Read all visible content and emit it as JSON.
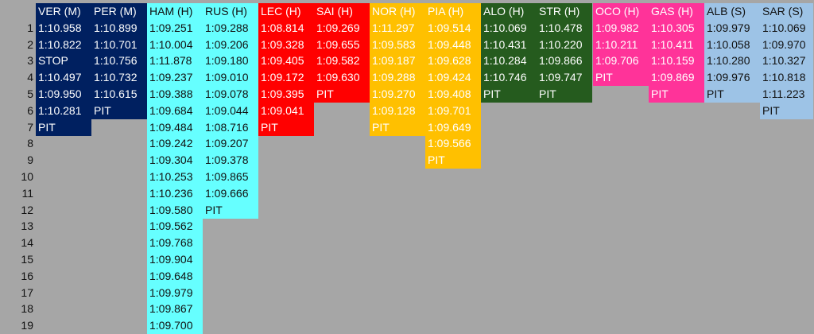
{
  "row_numbers": [
    "1",
    "2",
    "3",
    "4",
    "5",
    "6",
    "7",
    "8",
    "9",
    "10",
    "11",
    "12",
    "13",
    "14",
    "15",
    "16",
    "17",
    "18",
    "19"
  ],
  "columns": [
    {
      "key": "ver",
      "header": "VER (M)",
      "bg": "#002060",
      "fg": "#ffffff",
      "cells": [
        "1:10.958",
        "1:10.822",
        "STOP",
        "1:10.497",
        "1:09.950",
        "1:10.281",
        "PIT"
      ]
    },
    {
      "key": "per",
      "header": "PER (M)",
      "bg": "#002060",
      "fg": "#ffffff",
      "cells": [
        "1:10.899",
        "1:10.701",
        "1:10.756",
        "1:10.732",
        "1:10.615",
        "PIT"
      ]
    },
    {
      "key": "ham",
      "header": "HAM (H)",
      "bg": "#66ffff",
      "fg": "#111111",
      "cells": [
        "1:09.251",
        "1:10.004",
        "1:11.878",
        "1:09.237",
        "1:09.388",
        "1:09.684",
        "1:09.484",
        "1:09.242",
        "1:09.304",
        "1:10.253",
        "1:10.236",
        "1:09.580",
        "1:09.562",
        "1:09.768",
        "1:09.904",
        "1:09.648",
        "1:09.979",
        "1:09.867",
        "1:09.700"
      ]
    },
    {
      "key": "rus",
      "header": "RUS (H)",
      "bg": "#66ffff",
      "fg": "#111111",
      "cells": [
        "1:09.288",
        "1:09.206",
        "1:09.180",
        "1:09.010",
        "1:09.078",
        "1:09.044",
        "1:08.716",
        "1:09.207",
        "1:09.378",
        "1:09.865",
        "1:09.666",
        "PIT"
      ]
    },
    {
      "key": "lec",
      "header": "LEC (H)",
      "bg": "#ff0000",
      "fg": "#ffffff",
      "cells": [
        "1:08.814",
        "1:09.328",
        "1:09.405",
        "1:09.172",
        "1:09.395",
        "1:09.041",
        "PIT"
      ]
    },
    {
      "key": "sai",
      "header": "SAI (H)",
      "bg": "#ff0000",
      "fg": "#ffffff",
      "cells": [
        "1:09.269",
        "1:09.655",
        "1:09.582",
        "1:09.630",
        "PIT"
      ]
    },
    {
      "key": "nor",
      "header": "NOR (H)",
      "bg": "#ffc000",
      "fg": "#ffffff",
      "cells": [
        "1:11.297",
        "1:09.583",
        "1:09.187",
        "1:09.288",
        "1:09.270",
        "1:09.128",
        "PIT"
      ]
    },
    {
      "key": "pia",
      "header": "PIA (H)",
      "bg": "#ffc000",
      "fg": "#ffffff",
      "cells": [
        "1:09.514",
        "1:09.448",
        "1:09.628",
        "1:09.424",
        "1:09.408",
        "1:09.701",
        "1:09.649",
        "1:09.566",
        "PIT"
      ]
    },
    {
      "key": "alo",
      "header": "ALO (H)",
      "bg": "#255b1e",
      "fg": "#ffffff",
      "cells": [
        "1:10.069",
        "1:10.431",
        "1:10.284",
        "1:10.746",
        "PIT"
      ]
    },
    {
      "key": "str",
      "header": "STR (H)",
      "bg": "#255b1e",
      "fg": "#ffffff",
      "cells": [
        "1:10.478",
        "1:10.220",
        "1:09.866",
        "1:09.747",
        "PIT"
      ]
    },
    {
      "key": "oco",
      "header": "OCO (H)",
      "bg": "#ff3399",
      "fg": "#ffffff",
      "cells": [
        "1:09.982",
        "1:10.211",
        "1:09.706",
        "PIT"
      ]
    },
    {
      "key": "gas",
      "header": "GAS (H)",
      "bg": "#ff3399",
      "fg": "#ffffff",
      "cells": [
        "1:10.305",
        "1:10.411",
        "1:10.159",
        "1:09.869",
        "PIT"
      ]
    },
    {
      "key": "alb",
      "header": "ALB (S)",
      "bg": "#9dc3e6",
      "fg": "#111111",
      "cells": [
        "1:09.979",
        "1:10.058",
        "1:10.280",
        "1:09.976",
        "PIT"
      ]
    },
    {
      "key": "sar",
      "header": "SAR (S)",
      "bg": "#9dc3e6",
      "fg": "#111111",
      "cells": [
        "1:10.069",
        "1:09.970",
        "1:10.327",
        "1:10.818",
        "1:11.223",
        "PIT"
      ]
    }
  ]
}
